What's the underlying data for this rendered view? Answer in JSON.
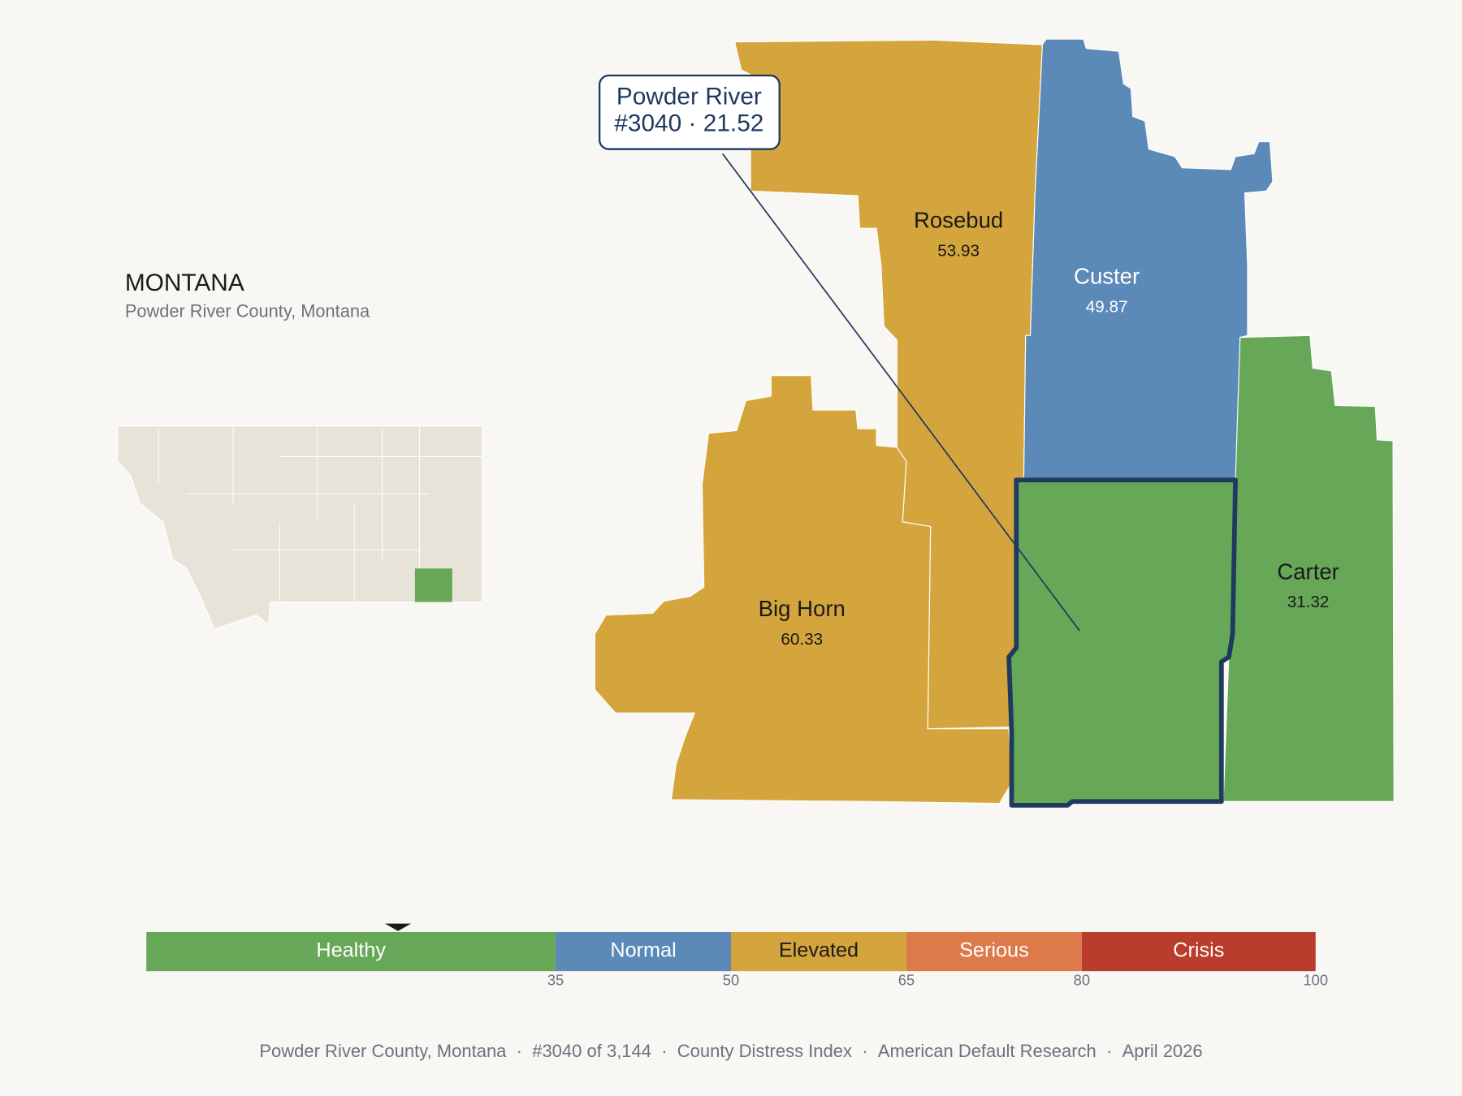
{
  "state": {
    "title": "MONTANA",
    "subtitle": "Powder River County, Montana"
  },
  "counties": [
    {
      "name": "Rosebud",
      "value": 53.93,
      "color": "#D4A53C"
    },
    {
      "name": "Big Horn",
      "value": 60.33,
      "color": "#D4A53C"
    },
    {
      "name": "Custer",
      "value": 49.87,
      "color": "#5B89B8"
    },
    {
      "name": "Carter",
      "value": 31.32,
      "color": "#67A758"
    }
  ],
  "selected": {
    "name": "Powder River",
    "label": "#3040 · 21.52",
    "value": 21.52,
    "color": "#67A758",
    "outline": "#1F3A5F"
  },
  "scale": {
    "lim": [
      0,
      100
    ],
    "ticks": [
      35,
      50,
      65,
      80,
      100
    ],
    "bands": [
      {
        "name": "Healthy",
        "color": "#67A758"
      },
      {
        "name": "Normal",
        "color": "#5B89B8"
      },
      {
        "name": "Elevated",
        "color": "#D4A53C"
      },
      {
        "name": "Serious",
        "color": "#DC7A4A"
      },
      {
        "name": "Crisis",
        "color": "#B93D2C"
      }
    ]
  },
  "footer": [
    "Powder River County, Montana",
    "#3040 of 3,144",
    "County Distress Index",
    "American Default Research",
    "April 2026"
  ]
}
